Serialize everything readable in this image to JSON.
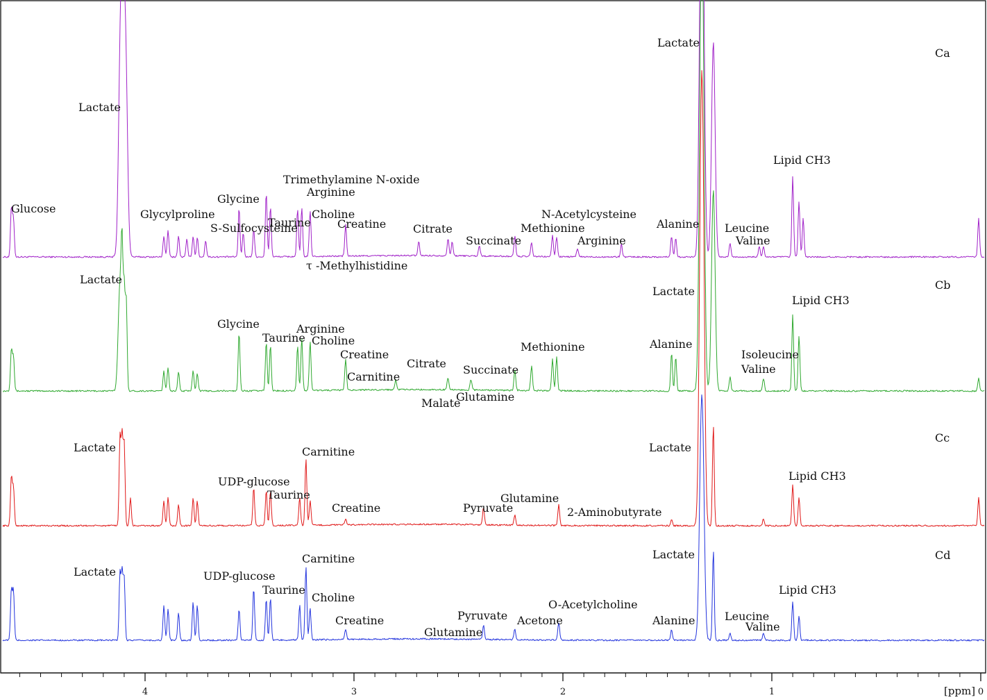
{
  "chart_data": {
    "type": "line",
    "title": "",
    "xlabel": "[ppm]",
    "ylabel": "",
    "x_axis": {
      "min": 0,
      "max": 4.65,
      "reversed": true,
      "ticks": [
        4,
        3,
        2,
        1,
        0
      ],
      "tick_labels": [
        "4",
        "3",
        "2",
        "1",
        "0"
      ]
    },
    "series": [
      {
        "name": "Ca",
        "color": "#a020c8",
        "peaks": [
          {
            "ppm": 4.64,
            "h": 70
          },
          {
            "ppm": 4.63,
            "h": 55
          },
          {
            "ppm": 4.12,
            "h": 215
          },
          {
            "ppm": 4.11,
            "h": 205
          },
          {
            "ppm": 4.1,
            "h": 195
          },
          {
            "ppm": 4.09,
            "h": 180
          },
          {
            "ppm": 3.91,
            "h": 30
          },
          {
            "ppm": 3.89,
            "h": 38
          },
          {
            "ppm": 3.84,
            "h": 30
          },
          {
            "ppm": 3.8,
            "h": 25
          },
          {
            "ppm": 3.77,
            "h": 30
          },
          {
            "ppm": 3.75,
            "h": 28
          },
          {
            "ppm": 3.71,
            "h": 24
          },
          {
            "ppm": 3.55,
            "h": 70
          },
          {
            "ppm": 3.53,
            "h": 35
          },
          {
            "ppm": 3.48,
            "h": 40
          },
          {
            "ppm": 3.42,
            "h": 92
          },
          {
            "ppm": 3.4,
            "h": 72
          },
          {
            "ppm": 3.27,
            "h": 68
          },
          {
            "ppm": 3.25,
            "h": 70
          },
          {
            "ppm": 3.21,
            "h": 65
          },
          {
            "ppm": 3.04,
            "h": 45
          },
          {
            "ppm": 2.69,
            "h": 20
          },
          {
            "ppm": 2.55,
            "h": 25
          },
          {
            "ppm": 2.53,
            "h": 20
          },
          {
            "ppm": 2.4,
            "h": 15
          },
          {
            "ppm": 2.23,
            "h": 30
          },
          {
            "ppm": 2.15,
            "h": 20
          },
          {
            "ppm": 2.05,
            "h": 30
          },
          {
            "ppm": 2.03,
            "h": 28
          },
          {
            "ppm": 1.93,
            "h": 12
          },
          {
            "ppm": 1.72,
            "h": 18
          },
          {
            "ppm": 1.48,
            "h": 30
          },
          {
            "ppm": 1.46,
            "h": 28
          },
          {
            "ppm": 1.34,
            "h": 370
          },
          {
            "ppm": 1.33,
            "h": 370
          },
          {
            "ppm": 1.28,
            "h": 310
          },
          {
            "ppm": 1.2,
            "h": 20
          },
          {
            "ppm": 1.06,
            "h": 15
          },
          {
            "ppm": 1.04,
            "h": 14
          },
          {
            "ppm": 0.9,
            "h": 115
          },
          {
            "ppm": 0.87,
            "h": 80
          },
          {
            "ppm": 0.85,
            "h": 55
          },
          {
            "ppm": 0.01,
            "h": 55
          }
        ]
      },
      {
        "name": "Cb",
        "color": "#2ea82e",
        "peaks": [
          {
            "ppm": 4.64,
            "h": 60
          },
          {
            "ppm": 4.63,
            "h": 50
          },
          {
            "ppm": 4.12,
            "h": 155
          },
          {
            "ppm": 4.11,
            "h": 150
          },
          {
            "ppm": 4.1,
            "h": 140
          },
          {
            "ppm": 4.09,
            "h": 130
          },
          {
            "ppm": 3.91,
            "h": 28
          },
          {
            "ppm": 3.89,
            "h": 34
          },
          {
            "ppm": 3.84,
            "h": 28
          },
          {
            "ppm": 3.77,
            "h": 30
          },
          {
            "ppm": 3.75,
            "h": 26
          },
          {
            "ppm": 3.55,
            "h": 85
          },
          {
            "ppm": 3.42,
            "h": 70
          },
          {
            "ppm": 3.4,
            "h": 65
          },
          {
            "ppm": 3.27,
            "h": 65
          },
          {
            "ppm": 3.25,
            "h": 75
          },
          {
            "ppm": 3.21,
            "h": 70
          },
          {
            "ppm": 3.04,
            "h": 45
          },
          {
            "ppm": 2.8,
            "h": 15
          },
          {
            "ppm": 2.55,
            "h": 18
          },
          {
            "ppm": 2.44,
            "h": 15
          },
          {
            "ppm": 2.23,
            "h": 30
          },
          {
            "ppm": 2.15,
            "h": 35
          },
          {
            "ppm": 2.05,
            "h": 45
          },
          {
            "ppm": 2.03,
            "h": 48
          },
          {
            "ppm": 1.48,
            "h": 55
          },
          {
            "ppm": 1.46,
            "h": 50
          },
          {
            "ppm": 1.34,
            "h": 400
          },
          {
            "ppm": 1.33,
            "h": 400
          },
          {
            "ppm": 1.28,
            "h": 290
          },
          {
            "ppm": 1.2,
            "h": 20
          },
          {
            "ppm": 1.04,
            "h": 18
          },
          {
            "ppm": 0.9,
            "h": 110
          },
          {
            "ppm": 0.87,
            "h": 80
          },
          {
            "ppm": 0.01,
            "h": 18
          }
        ]
      },
      {
        "name": "Cc",
        "color": "#e01818",
        "peaks": [
          {
            "ppm": 4.64,
            "h": 70
          },
          {
            "ppm": 4.63,
            "h": 55
          },
          {
            "ppm": 4.12,
            "h": 125
          },
          {
            "ppm": 4.11,
            "h": 125
          },
          {
            "ppm": 4.1,
            "h": 118
          },
          {
            "ppm": 4.07,
            "h": 40
          },
          {
            "ppm": 3.91,
            "h": 35
          },
          {
            "ppm": 3.89,
            "h": 40
          },
          {
            "ppm": 3.84,
            "h": 30
          },
          {
            "ppm": 3.77,
            "h": 40
          },
          {
            "ppm": 3.75,
            "h": 35
          },
          {
            "ppm": 3.48,
            "h": 55
          },
          {
            "ppm": 3.42,
            "h": 50
          },
          {
            "ppm": 3.4,
            "h": 50
          },
          {
            "ppm": 3.26,
            "h": 40
          },
          {
            "ppm": 3.23,
            "h": 95
          },
          {
            "ppm": 3.21,
            "h": 35
          },
          {
            "ppm": 3.04,
            "h": 8
          },
          {
            "ppm": 2.38,
            "h": 25
          },
          {
            "ppm": 2.23,
            "h": 15
          },
          {
            "ppm": 2.02,
            "h": 30
          },
          {
            "ppm": 1.48,
            "h": 10
          },
          {
            "ppm": 1.34,
            "h": 390
          },
          {
            "ppm": 1.33,
            "h": 390
          },
          {
            "ppm": 1.28,
            "h": 145
          },
          {
            "ppm": 1.04,
            "h": 10
          },
          {
            "ppm": 0.9,
            "h": 60
          },
          {
            "ppm": 0.87,
            "h": 40
          },
          {
            "ppm": 0.01,
            "h": 40
          }
        ]
      },
      {
        "name": "Cd",
        "color": "#2233dd",
        "peaks": [
          {
            "ppm": 4.64,
            "h": 72
          },
          {
            "ppm": 4.63,
            "h": 70
          },
          {
            "ppm": 4.12,
            "h": 95
          },
          {
            "ppm": 4.11,
            "h": 95
          },
          {
            "ppm": 4.1,
            "h": 90
          },
          {
            "ppm": 3.91,
            "h": 50
          },
          {
            "ppm": 3.89,
            "h": 45
          },
          {
            "ppm": 3.84,
            "h": 40
          },
          {
            "ppm": 3.77,
            "h": 55
          },
          {
            "ppm": 3.75,
            "h": 50
          },
          {
            "ppm": 3.55,
            "h": 45
          },
          {
            "ppm": 3.48,
            "h": 75
          },
          {
            "ppm": 3.42,
            "h": 60
          },
          {
            "ppm": 3.4,
            "h": 60
          },
          {
            "ppm": 3.26,
            "h": 50
          },
          {
            "ppm": 3.23,
            "h": 105
          },
          {
            "ppm": 3.21,
            "h": 45
          },
          {
            "ppm": 3.04,
            "h": 15
          },
          {
            "ppm": 2.38,
            "h": 20
          },
          {
            "ppm": 2.23,
            "h": 15
          },
          {
            "ppm": 2.02,
            "h": 25
          },
          {
            "ppm": 1.48,
            "h": 15
          },
          {
            "ppm": 1.34,
            "h": 210
          },
          {
            "ppm": 1.33,
            "h": 210
          },
          {
            "ppm": 1.28,
            "h": 130
          },
          {
            "ppm": 1.2,
            "h": 10
          },
          {
            "ppm": 1.04,
            "h": 10
          },
          {
            "ppm": 0.9,
            "h": 55
          },
          {
            "ppm": 0.87,
            "h": 35
          }
        ]
      }
    ],
    "spectrum_labels": [
      {
        "id": "ca",
        "text": "Ca"
      },
      {
        "id": "cb",
        "text": "Cb"
      },
      {
        "id": "cc",
        "text": "Cc"
      },
      {
        "id": "cd",
        "text": "Cd"
      }
    ],
    "annotations": [
      {
        "spectrum": "Ca",
        "text": "Glucose",
        "ppm": 4.52
      },
      {
        "spectrum": "Ca",
        "text": "Lactate",
        "ppm": 4.11
      },
      {
        "spectrum": "Ca",
        "text": "Glycylproline",
        "ppm": 3.83
      },
      {
        "spectrum": "Ca",
        "text": "Glycine",
        "ppm": 3.55
      },
      {
        "spectrum": "Ca",
        "text": "S-Sulfocysteine",
        "ppm": 3.53
      },
      {
        "spectrum": "Ca",
        "text": "Taurine",
        "ppm": 3.38
      },
      {
        "spectrum": "Ca",
        "text": "Trimethylamine N-oxide",
        "ppm": 3.08
      },
      {
        "spectrum": "Ca",
        "text": "Arginine",
        "ppm": 3.16
      },
      {
        "spectrum": "Ca",
        "text": "Choline",
        "ppm": 3.1
      },
      {
        "spectrum": "Ca",
        "text": "Creatine",
        "ppm": 2.93
      },
      {
        "spectrum": "Ca",
        "text": "τ -Methylhistidine",
        "ppm": 2.97
      },
      {
        "spectrum": "Ca",
        "text": "Citrate",
        "ppm": 2.63
      },
      {
        "spectrum": "Ca",
        "text": "Succinate",
        "ppm": 2.4
      },
      {
        "spectrum": "Ca",
        "text": "N-Acetylcysteine",
        "ppm": 1.92
      },
      {
        "spectrum": "Ca",
        "text": "Methionine",
        "ppm": 2.04
      },
      {
        "spectrum": "Ca",
        "text": "Arginine",
        "ppm": 1.75
      },
      {
        "spectrum": "Ca",
        "text": "Lactate",
        "ppm": 1.45
      },
      {
        "spectrum": "Ca",
        "text": "Alanine",
        "ppm": 1.45
      },
      {
        "spectrum": "Ca",
        "text": "Leucine",
        "ppm": 1.14
      },
      {
        "spectrum": "Ca",
        "text": "Valine",
        "ppm": 1.08
      },
      {
        "spectrum": "Ca",
        "text": "Lipid CH3",
        "ppm": 0.89
      },
      {
        "spectrum": "Cb",
        "text": "Lactate",
        "ppm": 4.13
      },
      {
        "spectrum": "Cb",
        "text": "Glycine",
        "ppm": 3.55
      },
      {
        "spectrum": "Cb",
        "text": "Taurine",
        "ppm": 3.42
      },
      {
        "spectrum": "Cb",
        "text": "Arginine",
        "ppm": 3.19
      },
      {
        "spectrum": "Cb",
        "text": "Choline",
        "ppm": 3.1
      },
      {
        "spectrum": "Cb",
        "text": "Creatine",
        "ppm": 2.97
      },
      {
        "spectrum": "Cb",
        "text": "Carnitine",
        "ppm": 2.9
      },
      {
        "spectrum": "Cb",
        "text": "Citrate",
        "ppm": 2.66
      },
      {
        "spectrum": "Cb",
        "text": "Succinate",
        "ppm": 2.4
      },
      {
        "spectrum": "Cb",
        "text": "Malate",
        "ppm": 2.56
      },
      {
        "spectrum": "Cb",
        "text": "Glutamine",
        "ppm": 2.4
      },
      {
        "spectrum": "Cb",
        "text": "Methionine",
        "ppm": 2.04
      },
      {
        "spectrum": "Cb",
        "text": "Lactate",
        "ppm": 1.47
      },
      {
        "spectrum": "Cb",
        "text": "Alanine",
        "ppm": 1.48
      },
      {
        "spectrum": "Cb",
        "text": "Isoleucine",
        "ppm": 1.02
      },
      {
        "spectrum": "Cb",
        "text": "Valine",
        "ppm": 1.03
      },
      {
        "spectrum": "Cb",
        "text": "Lipid CH3",
        "ppm": 0.8
      },
      {
        "spectrum": "Cc",
        "text": "Lactate",
        "ppm": 4.25
      },
      {
        "spectrum": "Cc",
        "text": "UDP-glucose",
        "ppm": 3.52
      },
      {
        "spectrum": "Cc",
        "text": "Carnitine",
        "ppm": 3.14
      },
      {
        "spectrum": "Cc",
        "text": "Taurine",
        "ppm": 3.36
      },
      {
        "spectrum": "Cc",
        "text": "Creatine",
        "ppm": 2.99
      },
      {
        "spectrum": "Cc",
        "text": "Pyruvate",
        "ppm": 2.42
      },
      {
        "spectrum": "Cc",
        "text": "Glutamine",
        "ppm": 2.24
      },
      {
        "spectrum": "Cc",
        "text": "2-Aminobutyrate",
        "ppm": 1.84
      },
      {
        "spectrum": "Cc",
        "text": "Lactate",
        "ppm": 1.48
      },
      {
        "spectrum": "Cc",
        "text": "Lipid CH3",
        "ppm": 0.82
      },
      {
        "spectrum": "Cd",
        "text": "Lactate",
        "ppm": 4.25
      },
      {
        "spectrum": "Cd",
        "text": "UDP-glucose",
        "ppm": 3.6
      },
      {
        "spectrum": "Cd",
        "text": "Carnitine",
        "ppm": 3.14
      },
      {
        "spectrum": "Cd",
        "text": "Taurine",
        "ppm": 3.36
      },
      {
        "spectrum": "Cd",
        "text": "Choline",
        "ppm": 3.1
      },
      {
        "spectrum": "Cd",
        "text": "Creatine",
        "ppm": 2.99
      },
      {
        "spectrum": "Cd",
        "text": "Pyruvate",
        "ppm": 2.42
      },
      {
        "spectrum": "Cd",
        "text": "Glutamine",
        "ppm": 2.54
      },
      {
        "spectrum": "Cd",
        "text": "Acetone",
        "ppm": 2.22
      },
      {
        "spectrum": "Cd",
        "text": "O-Acetylcholine",
        "ppm": 1.98
      },
      {
        "spectrum": "Cd",
        "text": "Lactate",
        "ppm": 1.48
      },
      {
        "spectrum": "Cd",
        "text": "Alanine",
        "ppm": 1.47
      },
      {
        "spectrum": "Cd",
        "text": "Leucine",
        "ppm": 1.14
      },
      {
        "spectrum": "Cd",
        "text": "Valine",
        "ppm": 1.06
      },
      {
        "spectrum": "Cd",
        "text": "Lipid CH3",
        "ppm": 0.82
      }
    ]
  }
}
